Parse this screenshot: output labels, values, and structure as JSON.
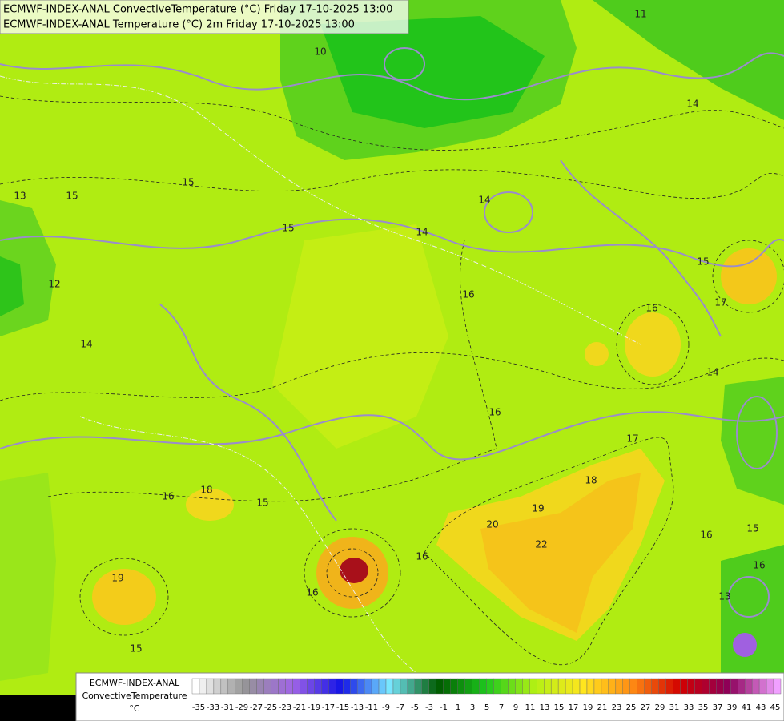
{
  "header": {
    "line1": "ECMWF-INDEX-ANAL ConvectiveTemperature (°C) Friday 17-10-2025 13:00",
    "line2": "ECMWF-INDEX-ANAL Temperature (°C) 2m Friday 17-10-2025 13:00"
  },
  "contour_labels": [
    15,
    15,
    15,
    14,
    14,
    16,
    16,
    14,
    15,
    14,
    11,
    10,
    13,
    12,
    16,
    18,
    15,
    16,
    19,
    20,
    22,
    18,
    17,
    16,
    15,
    16,
    13,
    19,
    15,
    16,
    14,
    17,
    16
  ],
  "legend": {
    "line1": "ECMWF-INDEX-ANAL",
    "line2": "ConvectiveTemperature",
    "unit": "°C",
    "ticks": [
      -35,
      -33,
      -31,
      -29,
      -27,
      -25,
      -23,
      -21,
      -19,
      -17,
      -15,
      -13,
      -11,
      -9,
      -7,
      -5,
      -3,
      -1,
      1,
      3,
      5,
      7,
      9,
      11,
      13,
      15,
      17,
      19,
      21,
      23,
      25,
      27,
      29,
      31,
      33,
      35,
      37,
      39,
      41,
      43,
      45
    ]
  }
}
